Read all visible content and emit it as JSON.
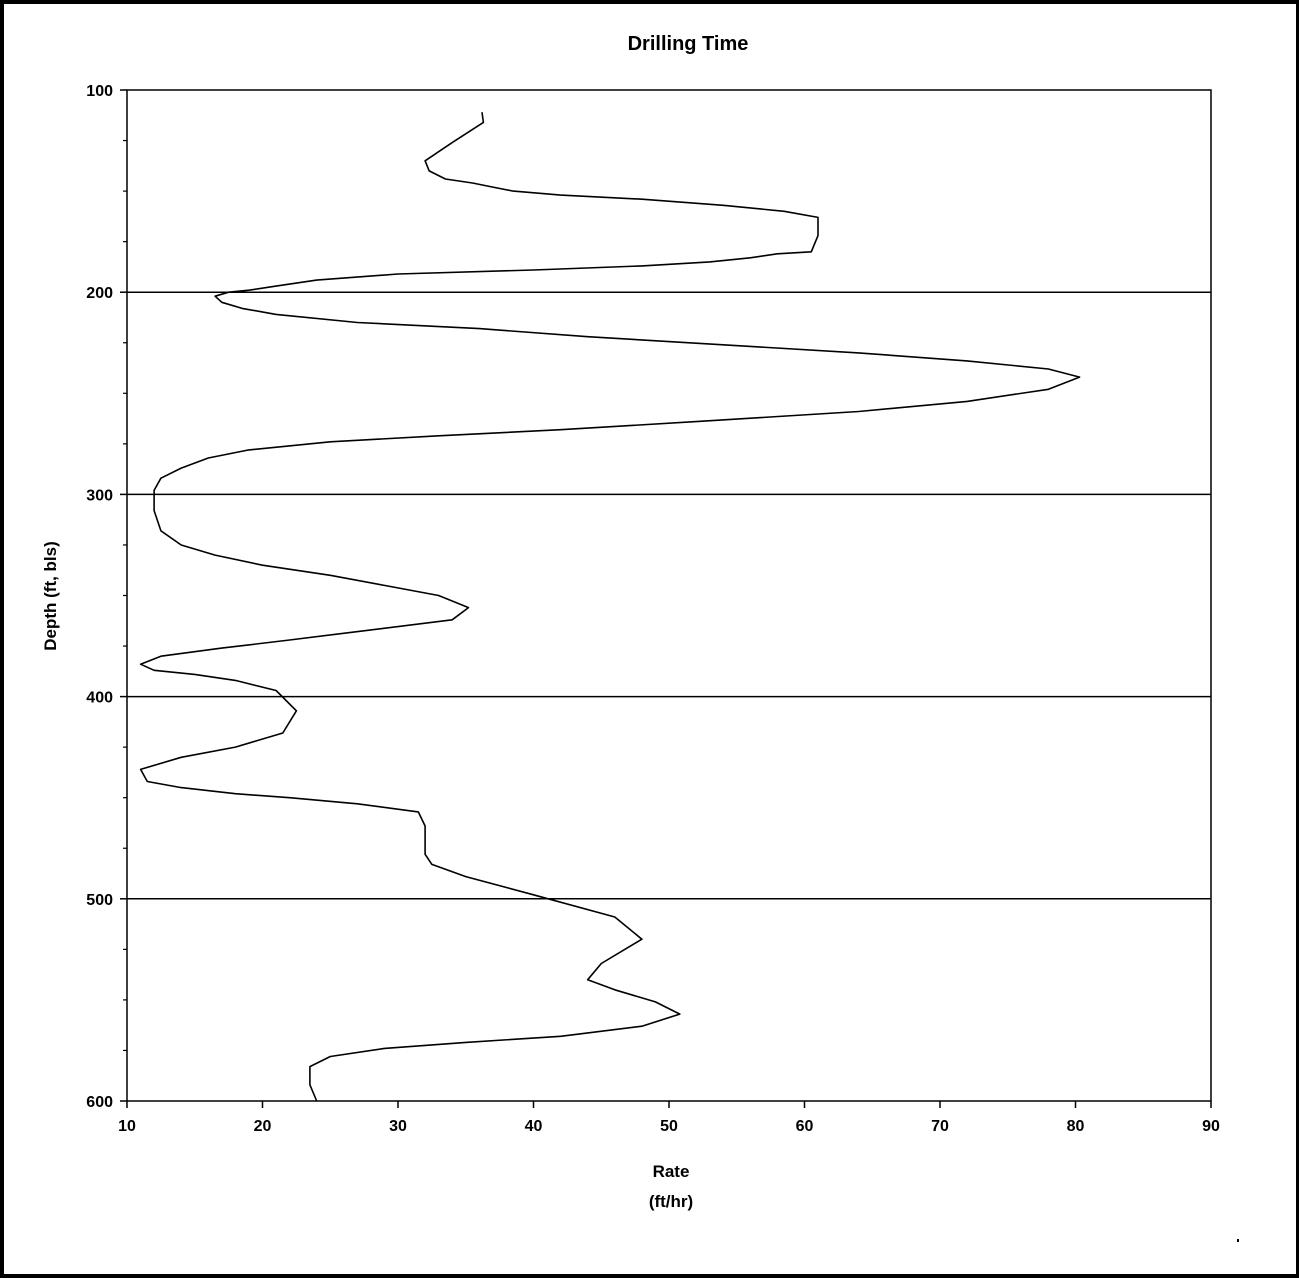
{
  "chart_data": {
    "type": "line",
    "title": "Drilling Time",
    "xlabel": "Rate",
    "xlabel_unit": "(ft/hr)",
    "ylabel": "Depth (ft, bls)",
    "xlim": [
      10,
      90
    ],
    "ylim": [
      100,
      600
    ],
    "y_inverted": true,
    "x_ticks": [
      10,
      20,
      30,
      40,
      50,
      60,
      70,
      80,
      90
    ],
    "y_ticks": [
      100,
      200,
      300,
      400,
      500,
      600
    ],
    "grid": "horizontal major lines",
    "legend": "none",
    "series": [
      {
        "x": [
          36.2,
          36.3,
          34.0,
          32.0,
          32.3,
          33.5,
          35.5,
          37.0,
          38.5,
          42.0,
          48.0,
          54.0,
          58.5,
          61.0,
          61.0,
          60.5,
          58.0,
          56.0,
          53.0,
          48.0,
          40.0,
          30.0,
          24.0,
          21.0,
          19.0,
          17.5,
          16.5,
          17.0,
          18.5,
          21.0,
          27.0,
          36.0,
          44.0,
          54.0,
          64.0,
          72.0,
          78.0,
          80.3,
          78.0,
          72.0,
          64.0,
          52.0,
          42.0,
          33.0,
          25.0,
          19.0,
          16.0,
          14.0,
          12.5,
          12.0,
          12.0,
          12.5,
          14.0,
          16.5,
          20.0,
          25.0,
          29.0,
          33.0,
          35.2,
          34.0,
          28.0,
          22.0,
          17.0,
          12.5,
          11.0,
          12.0,
          15.0,
          18.0,
          21.0,
          22.5,
          21.5,
          18.0,
          14.0,
          11.0,
          11.5,
          14.0,
          18.0,
          22.0,
          27.0,
          31.5,
          32.0,
          32.0,
          32.5,
          35.0,
          40.0,
          46.0,
          48.0,
          45.0,
          44.0,
          46.0,
          49.0,
          50.8,
          48.0,
          42.0,
          35.0,
          29.0,
          25.0,
          23.5,
          23.5,
          24.0
        ],
        "y": [
          111,
          116,
          126,
          135,
          140,
          144,
          146,
          148,
          150,
          152,
          154,
          157,
          160,
          163,
          172,
          180,
          181,
          183,
          185,
          187,
          189,
          191,
          194,
          197,
          199,
          200,
          202,
          205,
          208,
          211,
          215,
          218,
          222,
          226,
          230,
          234,
          238,
          242,
          248,
          254,
          259,
          264,
          268,
          271,
          274,
          278,
          282,
          287,
          292,
          298,
          308,
          318,
          325,
          330,
          335,
          340,
          345,
          350,
          356,
          362,
          367,
          372,
          376,
          380,
          384,
          387,
          389,
          392,
          397,
          407,
          418,
          425,
          430,
          436,
          442,
          445,
          448,
          450,
          453,
          457,
          464,
          478,
          483,
          489,
          498,
          509,
          520,
          532,
          540,
          545,
          551,
          557,
          563,
          568,
          571,
          574,
          578,
          583,
          592,
          600
        ]
      }
    ]
  }
}
